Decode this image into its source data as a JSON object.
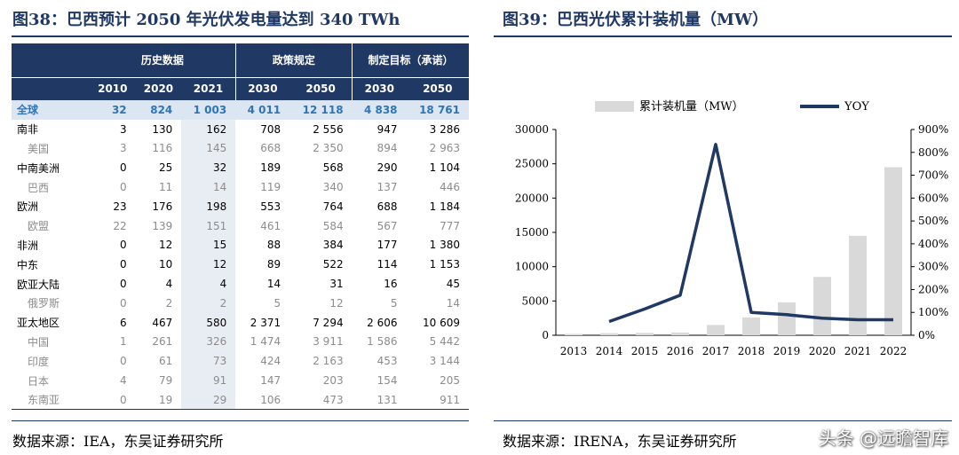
{
  "left": {
    "title": "图38：巴西预计 2050 年光伏发电量达到 340 TWh",
    "source": "数据来源：IEA，东吴证券研究所",
    "group_headers": [
      "历史数据",
      "政策规定",
      "制定目标（承诺）"
    ],
    "years": [
      "2010",
      "2020",
      "2021",
      "2030",
      "2050",
      "2030",
      "2050"
    ],
    "rows": [
      {
        "label": "全球",
        "type": "global",
        "values": [
          "32",
          "824",
          "1 003",
          "4 011",
          "12 118",
          "4 838",
          "18 761"
        ]
      },
      {
        "label": "南非",
        "type": "main",
        "values": [
          "3",
          "130",
          "162",
          "708",
          "2 556",
          "947",
          "3 286"
        ]
      },
      {
        "label": "美国",
        "type": "sub",
        "values": [
          "3",
          "116",
          "145",
          "668",
          "2 350",
          "894",
          "2 963"
        ]
      },
      {
        "label": "中南美洲",
        "type": "main",
        "values": [
          "0",
          "25",
          "32",
          "189",
          "568",
          "290",
          "1 104"
        ]
      },
      {
        "label": "巴西",
        "type": "sub",
        "values": [
          "0",
          "11",
          "14",
          "119",
          "340",
          "137",
          "446"
        ]
      },
      {
        "label": "欧洲",
        "type": "main",
        "values": [
          "23",
          "176",
          "198",
          "553",
          "764",
          "688",
          "1 184"
        ]
      },
      {
        "label": "欧盟",
        "type": "sub",
        "values": [
          "22",
          "139",
          "151",
          "461",
          "584",
          "567",
          "777"
        ]
      },
      {
        "label": "非洲",
        "type": "main",
        "values": [
          "0",
          "12",
          "15",
          "88",
          "384",
          "177",
          "1 380"
        ]
      },
      {
        "label": "中东",
        "type": "main",
        "values": [
          "0",
          "10",
          "12",
          "89",
          "522",
          "114",
          "1 153"
        ]
      },
      {
        "label": "欧亚大陆",
        "type": "main",
        "values": [
          "0",
          "4",
          "4",
          "14",
          "31",
          "16",
          "45"
        ]
      },
      {
        "label": "俄罗斯",
        "type": "sub",
        "values": [
          "0",
          "2",
          "2",
          "5",
          "12",
          "5",
          "14"
        ]
      },
      {
        "label": "亚太地区",
        "type": "main",
        "values": [
          "6",
          "467",
          "580",
          "2 371",
          "7 294",
          "2 606",
          "10 609"
        ]
      },
      {
        "label": "中国",
        "type": "sub",
        "values": [
          "1",
          "261",
          "326",
          "1 474",
          "3 911",
          "1 586",
          "5 442"
        ]
      },
      {
        "label": "印度",
        "type": "sub",
        "values": [
          "0",
          "61",
          "73",
          "424",
          "2 163",
          "453",
          "3 144"
        ]
      },
      {
        "label": "日本",
        "type": "sub",
        "values": [
          "4",
          "79",
          "91",
          "147",
          "203",
          "154",
          "205"
        ]
      },
      {
        "label": "东南亚",
        "type": "sub",
        "values": [
          "0",
          "19",
          "29",
          "106",
          "473",
          "131",
          "911"
        ]
      }
    ]
  },
  "right": {
    "title": "图39：巴西光伏累计装机量（MW）",
    "source": "数据来源：IRENA，东吴证券研究所"
  },
  "watermark": "头条 @远瞻智库",
  "chart_data": {
    "type": "bar+line",
    "title": "图39：巴西光伏累计装机量（MW）",
    "categories": [
      "2013",
      "2014",
      "2015",
      "2016",
      "2017",
      "2018",
      "2019",
      "2020",
      "2021",
      "2022"
    ],
    "series": [
      {
        "name": "累计装机量（MW）",
        "type": "bar",
        "axis": "left",
        "color": "#d9d9d9",
        "values": [
          200,
          300,
          350,
          400,
          1500,
          2600,
          4800,
          8500,
          14500,
          24500
        ]
      },
      {
        "name": "YOY",
        "type": "line",
        "axis": "right",
        "color": "#1f3864",
        "values": [
          null,
          60,
          115,
          175,
          835,
          100,
          90,
          75,
          68,
          68
        ]
      }
    ],
    "y_left": {
      "min": 0,
      "max": 30000,
      "ticks": [
        "0",
        "5000",
        "10000",
        "15000",
        "20000",
        "25000",
        "30000"
      ]
    },
    "y_right": {
      "min": 0,
      "max": 900,
      "ticks": [
        "0%",
        "100%",
        "200%",
        "300%",
        "400%",
        "500%",
        "600%",
        "700%",
        "800%",
        "900%"
      ]
    },
    "legend": "top",
    "grid": false
  }
}
